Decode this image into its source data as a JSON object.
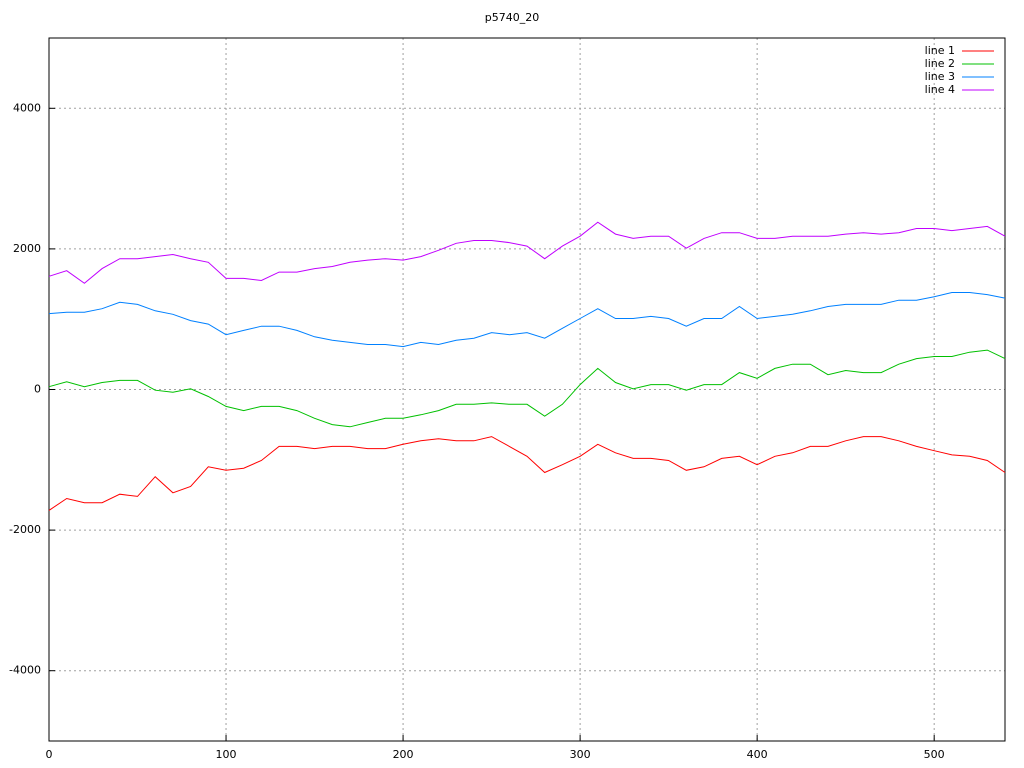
{
  "chart_data": {
    "type": "line",
    "title": "p5740_20",
    "x": [
      0,
      10,
      20,
      30,
      40,
      50,
      60,
      70,
      80,
      90,
      100,
      110,
      120,
      130,
      140,
      150,
      160,
      170,
      180,
      190,
      200,
      210,
      220,
      230,
      240,
      250,
      260,
      270,
      280,
      290,
      300,
      310,
      320,
      330,
      340,
      350,
      360,
      370,
      380,
      390,
      400,
      410,
      420,
      430,
      440,
      450,
      460,
      470,
      480,
      490,
      500,
      510,
      520,
      530,
      540
    ],
    "series": [
      {
        "name": "line 1",
        "color": "#ff0000",
        "values": [
          -1720,
          -1550,
          -1610,
          -1610,
          -1490,
          -1520,
          -1240,
          -1470,
          -1380,
          -1100,
          -1150,
          -1120,
          -1010,
          -810,
          -810,
          -840,
          -810,
          -810,
          -840,
          -840,
          -780,
          -730,
          -700,
          -730,
          -730,
          -670,
          -810,
          -950,
          -1180,
          -1070,
          -950,
          -780,
          -900,
          -980,
          -980,
          -1010,
          -1150,
          -1100,
          -980,
          -950,
          -1070,
          -950,
          -900,
          -810,
          -810,
          -730,
          -670,
          -670,
          -730,
          -810,
          -870,
          -930,
          -950,
          -1010,
          -1180
        ]
      },
      {
        "name": "line 2",
        "color": "#00c000",
        "values": [
          40,
          110,
          40,
          100,
          130,
          130,
          -10,
          -40,
          10,
          -100,
          -240,
          -300,
          -240,
          -240,
          -300,
          -410,
          -500,
          -530,
          -470,
          -410,
          -410,
          -360,
          -300,
          -210,
          -210,
          -190,
          -210,
          -210,
          -380,
          -210,
          70,
          300,
          100,
          10,
          70,
          70,
          -10,
          70,
          70,
          240,
          160,
          300,
          360,
          360,
          210,
          270,
          240,
          240,
          360,
          440,
          470,
          470,
          530,
          560,
          440
        ]
      },
      {
        "name": "line 3",
        "color": "#0080ff",
        "values": [
          1080,
          1100,
          1100,
          1150,
          1240,
          1210,
          1120,
          1070,
          980,
          930,
          780,
          840,
          900,
          900,
          840,
          750,
          700,
          670,
          640,
          640,
          610,
          670,
          640,
          700,
          730,
          810,
          780,
          810,
          730,
          870,
          1010,
          1150,
          1010,
          1010,
          1040,
          1010,
          900,
          1010,
          1010,
          1180,
          1010,
          1040,
          1070,
          1120,
          1180,
          1210,
          1210,
          1210,
          1270,
          1270,
          1320,
          1380,
          1380,
          1350,
          1300
        ]
      },
      {
        "name": "line 4",
        "color": "#c000ff",
        "values": [
          1610,
          1690,
          1510,
          1720,
          1860,
          1860,
          1890,
          1920,
          1860,
          1810,
          1580,
          1580,
          1550,
          1670,
          1670,
          1720,
          1750,
          1810,
          1840,
          1860,
          1840,
          1890,
          1980,
          2080,
          2120,
          2120,
          2090,
          2040,
          1860,
          2040,
          2180,
          2380,
          2210,
          2150,
          2180,
          2180,
          2010,
          2150,
          2230,
          2230,
          2150,
          2150,
          2180,
          2180,
          2180,
          2210,
          2230,
          2210,
          2230,
          2290,
          2290,
          2260,
          2290,
          2320,
          2180
        ]
      }
    ],
    "xlim": [
      0,
      540
    ],
    "xticks": [
      0,
      100,
      200,
      300,
      400,
      500
    ],
    "ylim": [
      -5000,
      5000
    ],
    "yticks": [
      -4000,
      -2000,
      0,
      2000,
      4000
    ],
    "grid": true,
    "legend": "top-right"
  }
}
